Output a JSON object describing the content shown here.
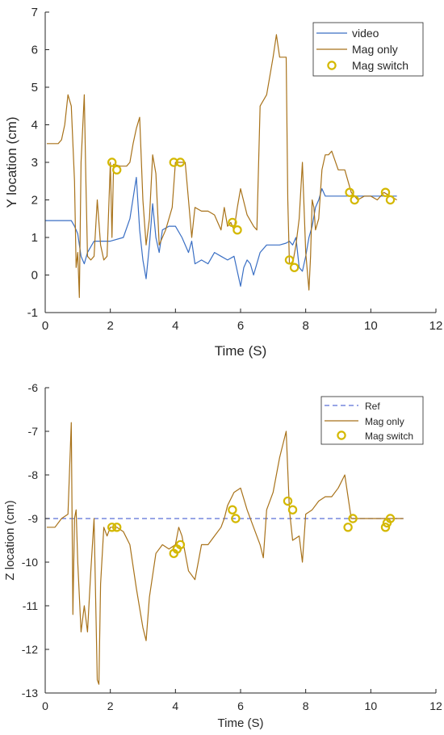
{
  "colors": {
    "video": "#3a6fc4",
    "mag_only": "#a8721a",
    "mag_switch": "#d4b800",
    "ref": "#5a6fd8",
    "axis": "#262626"
  },
  "chart_data": [
    {
      "type": "line",
      "xlabel": "Time (S)",
      "ylabel": "Y location (cm)",
      "xlim": [
        0,
        12
      ],
      "ylim": [
        -1,
        7
      ],
      "xticks": [
        "0",
        "2",
        "4",
        "6",
        "8",
        "10",
        "12"
      ],
      "yticks": [
        "-1",
        "0",
        "1",
        "2",
        "3",
        "4",
        "5",
        "6",
        "7"
      ],
      "grid": false,
      "legend_position": "top-right",
      "series": [
        {
          "name": "video",
          "style": "line",
          "x": [
            0,
            0.7,
            0.8,
            0.9,
            1.0,
            1.1,
            1.2,
            1.3,
            1.5,
            1.7,
            2.0,
            2.4,
            2.6,
            2.8,
            2.9,
            3.0,
            3.1,
            3.2,
            3.3,
            3.4,
            3.5,
            3.6,
            3.8,
            4.0,
            4.2,
            4.4,
            4.5,
            4.6,
            4.8,
            5.0,
            5.2,
            5.4,
            5.6,
            5.8,
            6.0,
            6.1,
            6.2,
            6.3,
            6.4,
            6.6,
            6.8,
            7.0,
            7.2,
            7.4,
            7.5,
            7.6,
            7.7,
            7.8,
            7.9,
            8.0,
            8.1,
            8.2,
            8.3,
            8.4,
            8.5,
            8.6,
            8.8,
            9.0,
            9.5,
            10.0,
            10.5,
            10.8
          ],
          "values": [
            1.45,
            1.45,
            1.45,
            1.3,
            1.1,
            0.5,
            0.3,
            0.6,
            0.9,
            0.9,
            0.9,
            1.0,
            1.5,
            2.6,
            1.2,
            0.4,
            -0.1,
            0.8,
            1.9,
            1.0,
            0.6,
            1.2,
            1.3,
            1.3,
            1.0,
            0.6,
            0.9,
            0.3,
            0.4,
            0.3,
            0.6,
            0.5,
            0.4,
            0.5,
            -0.3,
            0.2,
            0.4,
            0.3,
            0.0,
            0.6,
            0.8,
            0.8,
            0.8,
            0.85,
            0.9,
            0.8,
            1.0,
            0.2,
            0.1,
            0.5,
            1.0,
            1.3,
            1.8,
            2.0,
            2.3,
            2.1,
            2.1,
            2.1,
            2.1,
            2.1,
            2.1,
            2.1
          ]
        },
        {
          "name": "Mag only",
          "style": "line",
          "x": [
            0.05,
            0.4,
            0.5,
            0.6,
            0.7,
            0.8,
            0.9,
            0.95,
            1.0,
            1.05,
            1.1,
            1.2,
            1.25,
            1.3,
            1.4,
            1.5,
            1.6,
            1.7,
            1.8,
            1.9,
            2.0,
            2.05,
            2.1,
            2.3,
            2.5,
            2.6,
            2.7,
            2.8,
            2.9,
            3.0,
            3.1,
            3.2,
            3.3,
            3.4,
            3.5,
            3.7,
            3.9,
            4.0,
            4.1,
            4.3,
            4.4,
            4.5,
            4.6,
            4.8,
            5.0,
            5.2,
            5.4,
            5.5,
            5.6,
            5.7,
            5.8,
            5.9,
            6.0,
            6.2,
            6.4,
            6.5,
            6.6,
            6.8,
            7.0,
            7.1,
            7.2,
            7.3,
            7.4,
            7.45,
            7.5,
            7.6,
            7.7,
            7.8,
            7.9,
            8.0,
            8.1,
            8.15,
            8.2,
            8.25,
            8.3,
            8.4,
            8.5,
            8.6,
            8.7,
            8.8,
            9.0,
            9.2,
            9.4,
            9.6,
            9.8,
            10.0,
            10.2,
            10.4,
            10.6,
            10.8
          ],
          "values": [
            3.5,
            3.5,
            3.6,
            4.0,
            4.8,
            4.5,
            2.5,
            0.2,
            0.6,
            -0.6,
            3.0,
            4.8,
            2.5,
            0.5,
            0.4,
            0.5,
            2.0,
            0.8,
            0.4,
            0.5,
            3.0,
            1.0,
            2.95,
            2.9,
            2.9,
            3.0,
            3.5,
            3.9,
            4.2,
            2.0,
            0.8,
            1.5,
            3.2,
            2.7,
            0.8,
            1.2,
            1.8,
            3.0,
            3.0,
            3.0,
            2.0,
            1.0,
            1.8,
            1.7,
            1.7,
            1.6,
            1.2,
            1.8,
            1.3,
            1.4,
            1.2,
            1.8,
            2.3,
            1.6,
            1.3,
            1.2,
            4.5,
            4.8,
            5.8,
            6.4,
            5.8,
            5.8,
            5.8,
            2.0,
            0.3,
            0.3,
            0.8,
            1.5,
            3.0,
            0.6,
            -0.4,
            0.5,
            2.0,
            1.8,
            1.2,
            1.5,
            2.8,
            3.2,
            3.2,
            3.3,
            2.8,
            2.8,
            2.2,
            2.0,
            2.1,
            2.1,
            2.0,
            2.2,
            2.1,
            2.0
          ]
        },
        {
          "name": "Mag switch",
          "style": "markers",
          "x": [
            2.05,
            2.2,
            3.95,
            4.15,
            5.75,
            5.9,
            7.5,
            7.65,
            9.35,
            9.5,
            10.45,
            10.6
          ],
          "values": [
            3.0,
            2.8,
            3.0,
            3.0,
            1.4,
            1.2,
            0.4,
            0.2,
            2.2,
            2.0,
            2.2,
            2.0
          ]
        }
      ]
    },
    {
      "type": "line",
      "xlabel": "Time (S)",
      "ylabel": "Z location (cm)",
      "xlim": [
        0,
        12
      ],
      "ylim": [
        -13,
        -6
      ],
      "xticks": [
        "0",
        "2",
        "4",
        "6",
        "8",
        "10",
        "12"
      ],
      "yticks": [
        "-13",
        "-12",
        "-11",
        "-10",
        "-9",
        "-8",
        "-7",
        "-6"
      ],
      "grid": false,
      "legend_position": "top-right",
      "series": [
        {
          "name": "Ref",
          "style": "dashed",
          "x": [
            0,
            11
          ],
          "values": [
            -9.0,
            -9.0
          ]
        },
        {
          "name": "Mag only",
          "style": "line",
          "x": [
            0.05,
            0.3,
            0.5,
            0.7,
            0.8,
            0.85,
            0.9,
            0.95,
            1.0,
            1.1,
            1.2,
            1.3,
            1.4,
            1.5,
            1.6,
            1.65,
            1.7,
            1.8,
            1.9,
            2.0,
            2.2,
            2.4,
            2.6,
            2.8,
            3.0,
            3.1,
            3.2,
            3.4,
            3.6,
            3.8,
            4.0,
            4.1,
            4.2,
            4.4,
            4.6,
            4.7,
            4.8,
            5.0,
            5.2,
            5.4,
            5.5,
            5.6,
            5.8,
            6.0,
            6.2,
            6.4,
            6.6,
            6.7,
            6.8,
            7.0,
            7.2,
            7.4,
            7.5,
            7.6,
            7.8,
            7.9,
            8.0,
            8.2,
            8.4,
            8.6,
            8.8,
            9.0,
            9.2,
            9.4,
            9.6,
            9.8,
            10.0,
            10.2,
            10.4,
            10.6,
            10.8,
            11.0
          ],
          "values": [
            -9.2,
            -9.2,
            -9.0,
            -8.9,
            -6.8,
            -11.2,
            -9.0,
            -8.8,
            -10.0,
            -11.6,
            -11.0,
            -11.6,
            -10.2,
            -9.0,
            -12.7,
            -12.8,
            -10.5,
            -9.2,
            -9.4,
            -9.2,
            -9.2,
            -9.3,
            -9.6,
            -10.6,
            -11.5,
            -11.8,
            -10.8,
            -9.8,
            -9.6,
            -9.7,
            -9.6,
            -9.2,
            -9.4,
            -10.2,
            -10.4,
            -10.0,
            -9.6,
            -9.6,
            -9.4,
            -9.2,
            -9.0,
            -8.7,
            -8.4,
            -8.3,
            -8.8,
            -9.2,
            -9.6,
            -9.9,
            -8.8,
            -8.4,
            -7.6,
            -7.0,
            -8.8,
            -9.5,
            -9.4,
            -10.0,
            -8.9,
            -8.8,
            -8.6,
            -8.5,
            -8.5,
            -8.3,
            -8.0,
            -9.0,
            -9.0,
            -9.0,
            -9.0,
            -9.0,
            -9.0,
            -9.0,
            -9.0,
            -9.0
          ]
        },
        {
          "name": "Mag switch",
          "style": "markers",
          "x": [
            2.05,
            2.2,
            3.95,
            4.05,
            4.15,
            5.75,
            5.85,
            7.45,
            7.6,
            9.3,
            9.45,
            10.45,
            10.5,
            10.6
          ],
          "values": [
            -9.2,
            -9.2,
            -9.8,
            -9.7,
            -9.6,
            -8.8,
            -9.0,
            -8.6,
            -8.8,
            -9.2,
            -9.0,
            -9.2,
            -9.1,
            -9.0
          ]
        }
      ]
    }
  ]
}
